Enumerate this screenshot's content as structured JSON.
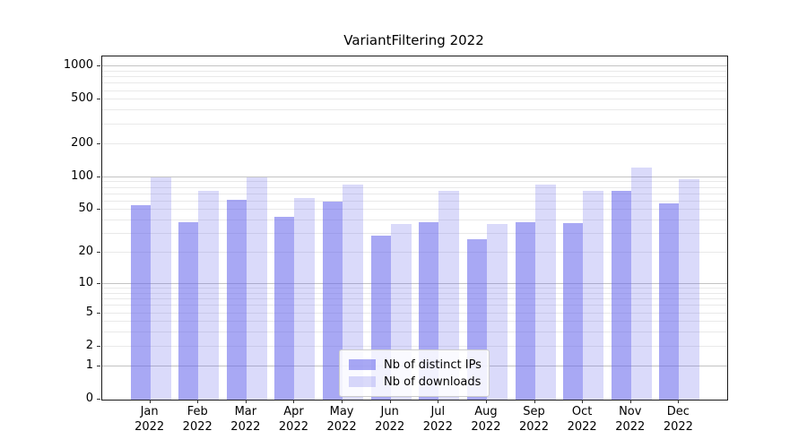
{
  "title": "VariantFiltering 2022",
  "colors": {
    "ips_fill": "rgba(100,100,236,0.56)",
    "downloads_fill": "rgba(100,100,236,0.24)",
    "grid_major": "#c3c3c3",
    "grid_minor": "#e9e9e9",
    "spine": "#1a1a1a"
  },
  "legend": {
    "items": [
      {
        "label": "Nb of distinct IPs",
        "series": "ips"
      },
      {
        "label": "Nb of downloads",
        "series": "downloads"
      }
    ]
  },
  "chart_data": {
    "type": "bar",
    "title": "VariantFiltering 2022",
    "xlabel": "",
    "ylabel": "",
    "scale": "log1p",
    "year": "2022",
    "categories": [
      "Jan",
      "Feb",
      "Mar",
      "Apr",
      "May",
      "Jun",
      "Jul",
      "Aug",
      "Sep",
      "Oct",
      "Nov",
      "Dec"
    ],
    "series": [
      {
        "name": "Nb of distinct IPs",
        "values": [
          55,
          39,
          62,
          43,
          60,
          29,
          39,
          27,
          39,
          38,
          75,
          58
        ]
      },
      {
        "name": "Nb of downloads",
        "values": [
          100,
          75,
          100,
          64,
          85,
          37,
          75,
          37,
          85,
          75,
          122,
          95
        ]
      }
    ],
    "yticks": [
      0,
      1,
      2,
      5,
      10,
      20,
      50,
      100,
      200,
      500,
      1000
    ],
    "grid_major_values": [
      1,
      10,
      100,
      1000
    ],
    "grid_minor_values": [
      2,
      3,
      4,
      5,
      6,
      7,
      8,
      9,
      20,
      30,
      40,
      50,
      60,
      70,
      80,
      90,
      200,
      300,
      400,
      500,
      600,
      700,
      800,
      900
    ],
    "ylim": [
      0,
      1232
    ],
    "grid": "both",
    "legend_position": "lower center"
  }
}
